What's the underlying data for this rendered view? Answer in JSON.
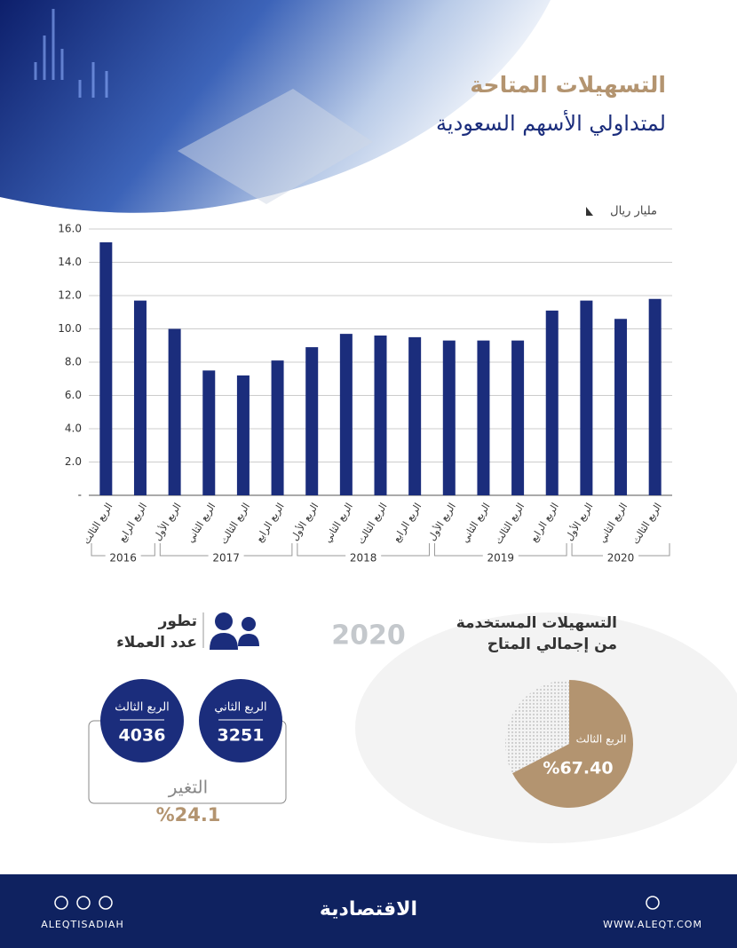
{
  "header": {
    "title": "التسهيلات المتاحة",
    "subtitle": "لمتداولي الأسهم السعودية"
  },
  "chart_data": [
    {
      "type": "bar",
      "y_label": "مليار ريال",
      "color": "#1b2d7c",
      "groups": [
        {
          "name": "2016",
          "categories": [
            "الربع الثالث",
            "الربع الرابع"
          ],
          "values": [
            15.2,
            11.7
          ]
        },
        {
          "name": "2017",
          "categories": [
            "الربع الأول",
            "الربع الثاني",
            "الربع الثالث",
            "الربع الرابع"
          ],
          "values": [
            10.0,
            7.5,
            7.2,
            8.1
          ]
        },
        {
          "name": "2018",
          "categories": [
            "الربع الأول",
            "الربع الثاني",
            "الربع الثالث",
            "الربع الرابع"
          ],
          "values": [
            8.9,
            9.7,
            9.6,
            9.5
          ]
        },
        {
          "name": "2019",
          "categories": [
            "الربع الأول",
            "الربع الثاني",
            "الربع الثالث",
            "الربع الرابع"
          ],
          "values": [
            9.3,
            9.3,
            9.3,
            11.1
          ]
        },
        {
          "name": "2020",
          "categories": [
            "الربع الأول",
            "الربع الثاني",
            "الربع الثالث"
          ],
          "values": [
            11.7,
            10.6,
            11.8
          ]
        }
      ],
      "ylim": [
        0,
        16
      ],
      "yticks": [
        {
          "value": 0,
          "label": "-"
        },
        {
          "value": 2,
          "label": "2.0"
        },
        {
          "value": 4,
          "label": "4.0"
        },
        {
          "value": 6,
          "label": "6.0"
        },
        {
          "value": 8,
          "label": "8.0"
        },
        {
          "value": 10,
          "label": "10.0"
        },
        {
          "value": 12,
          "label": "12.0"
        },
        {
          "value": 14,
          "label": "14.0"
        },
        {
          "value": 16,
          "label": "16.0"
        }
      ],
      "grid": true
    },
    {
      "type": "pie",
      "title": [
        "التسهيلات المستخدمة",
        "من إجمالي المتاح"
      ],
      "categories": [
        "الربع الثالث",
        null
      ],
      "values": [
        67.4,
        32.6
      ],
      "value_labels": [
        "%67.40",
        null
      ],
      "colors": [
        "#b39470",
        "dotted"
      ]
    }
  ],
  "highlight_year": "2020",
  "customers": {
    "title": [
      "تطور",
      "عدد العملاء"
    ],
    "quarters": [
      {
        "label": "الربع الثاني",
        "value": "3251"
      },
      {
        "label": "الربع الثالث",
        "value": "4036"
      }
    ],
    "change": {
      "label": "التغير",
      "value": "%24.1"
    }
  },
  "footer": {
    "handle": "ALEQTISADIAH",
    "brand": "الاقتصادية",
    "website": "WWW.ALEQT.COM"
  }
}
